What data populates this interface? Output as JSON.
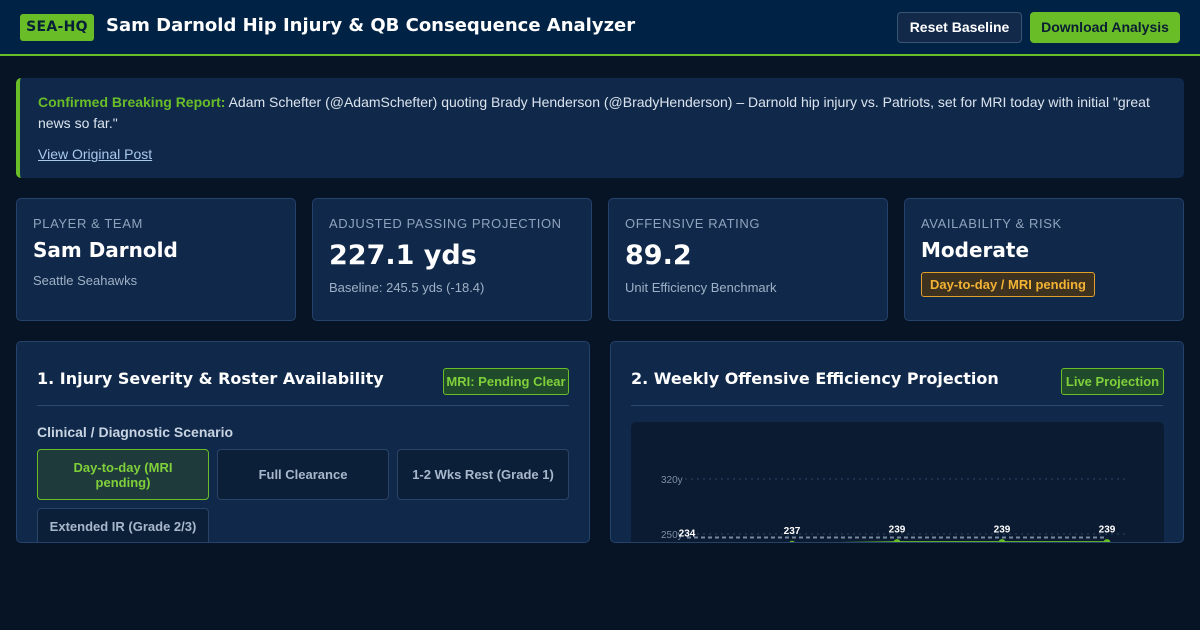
{
  "header": {
    "badge": "SEA-HQ",
    "title": "Sam Darnold Hip Injury & QB Consequence Analyzer",
    "reset_label": "Reset Baseline",
    "download_label": "Download Analysis"
  },
  "alert": {
    "lead": "Confirmed Breaking Report:",
    "body": " Adam Schefter (@AdamSchefter) quoting Brady Henderson (@BradyHenderson) – Darnold hip injury vs. Patriots, set for MRI today with initial \"great news so far.\"",
    "link_label": "View Original Post"
  },
  "cards": [
    {
      "label": "Player & Team",
      "value": "Sam Darnold",
      "sub": "Seattle Seahawks"
    },
    {
      "label": "Adjusted Passing Projection",
      "value": "227.1 yds",
      "sub": "Baseline: 245.5 yds (-18.4)"
    },
    {
      "label": "Offensive Rating",
      "value": "89.2",
      "sub": "Unit Efficiency Benchmark"
    },
    {
      "label": "Availability & Risk",
      "value": "Moderate",
      "badge": "Day-to-day / MRI pending"
    }
  ],
  "injury_panel": {
    "title": "1. Injury Severity & Roster Availability",
    "tag": "MRI: Pending Clear",
    "scenario_label": "Clinical / Diagnostic Scenario",
    "options": [
      {
        "label": "Day-to-day (MRI pending)",
        "selected": true
      },
      {
        "label": "Full Clearance",
        "selected": false
      },
      {
        "label": "1-2 Wks Rest (Grade 1)",
        "selected": false
      },
      {
        "label": "Extended IR (Grade 2/3)",
        "selected": false
      }
    ]
  },
  "projection_panel": {
    "title": "2. Weekly Offensive Efficiency Projection",
    "tag": "Live Projection"
  },
  "colors": {
    "accent": "#69be28",
    "navy": "#002244",
    "warning": "#f2b234",
    "baseline_line": "#8fa3bc"
  },
  "chart_data": {
    "type": "line",
    "y_ticks": [
      "320y",
      "250y"
    ],
    "ylim": [
      250,
      320
    ],
    "series": [
      {
        "values": [
          234,
          237,
          239,
          239,
          239
        ],
        "color": "#69be28",
        "style": "solid"
      },
      {
        "values": [
          245.5,
          245.5,
          245.5,
          245.5,
          245.5
        ],
        "color": "#8fa3bc",
        "style": "dashed"
      }
    ],
    "grid": true
  }
}
